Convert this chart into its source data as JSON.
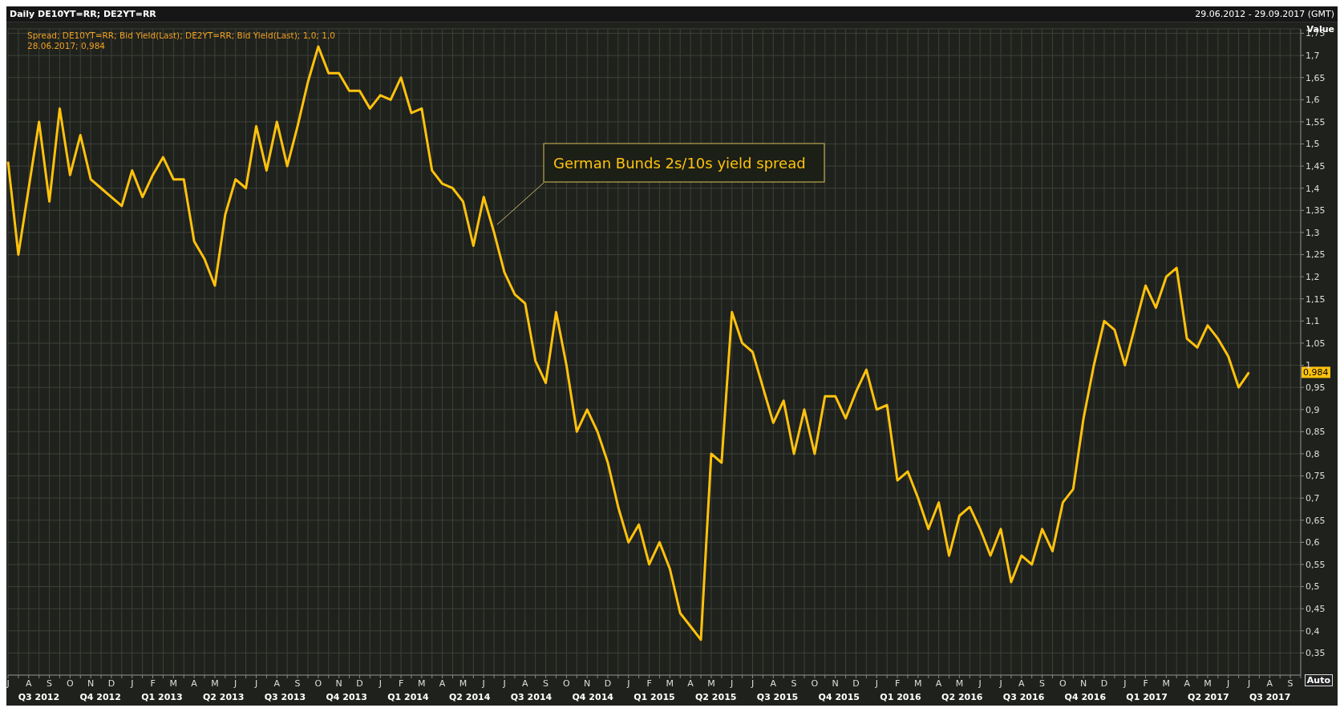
{
  "chart_data": {
    "type": "line",
    "title": "Daily DE10YT=RR; DE2YT=RR",
    "subtitle": "29.06.2012 - 29.09.2017 (GMT)",
    "ylabel": "Value",
    "categories": [
      "J",
      null,
      "A",
      null,
      "S",
      null,
      "O",
      null,
      "N",
      null,
      "D",
      null,
      "J",
      null,
      "F",
      null,
      "M",
      null,
      "A",
      null,
      "M",
      null,
      "J",
      null,
      "J",
      null,
      "A",
      null,
      "S",
      null,
      "O",
      null,
      "N",
      null,
      "D",
      null,
      "J",
      null,
      "F",
      null,
      "M",
      null,
      "A",
      null,
      "M",
      null,
      "J",
      null,
      "J",
      null,
      "A",
      null,
      "S",
      null,
      "O",
      null,
      "N",
      null,
      "D",
      null,
      "J",
      null,
      "F",
      null,
      "M",
      null,
      "A",
      null,
      "M",
      null,
      "J",
      null,
      "J",
      null,
      "A",
      null,
      "S",
      null,
      "O",
      null,
      "N",
      null,
      "D",
      null,
      "J",
      null,
      "F",
      null,
      "M",
      null,
      "A",
      null,
      "M",
      null,
      "J",
      null,
      "J",
      null,
      "A",
      null,
      "S",
      null,
      "O",
      null,
      "N",
      null,
      "D",
      null,
      "J",
      null,
      "F",
      null,
      "M",
      null,
      "A",
      null,
      "M",
      null,
      "J",
      null,
      "J",
      null,
      "A",
      null,
      "S",
      null
    ],
    "series": [
      {
        "name": "Spread; DE10YT=RR; Bid Yield(Last); DE2YT=RR; Bid Yield(Last);  1,0; 1,0",
        "color": "#ffc20e",
        "values": [
          1.46,
          1.25,
          1.4,
          1.55,
          1.37,
          1.58,
          1.43,
          1.52,
          1.42,
          1.4,
          1.38,
          1.36,
          1.44,
          1.38,
          1.43,
          1.47,
          1.42,
          1.42,
          1.28,
          1.24,
          1.18,
          1.34,
          1.42,
          1.4,
          1.54,
          1.44,
          1.55,
          1.45,
          1.54,
          1.64,
          1.72,
          1.66,
          1.66,
          1.62,
          1.62,
          1.58,
          1.61,
          1.6,
          1.65,
          1.57,
          1.58,
          1.44,
          1.41,
          1.4,
          1.37,
          1.27,
          1.38,
          1.3,
          1.21,
          1.16,
          1.14,
          1.01,
          0.96,
          1.12,
          1.0,
          0.85,
          0.9,
          0.85,
          0.78,
          0.68,
          0.6,
          0.64,
          0.55,
          0.6,
          0.54,
          0.44,
          0.41,
          0.38,
          0.8,
          0.78,
          1.12,
          1.05,
          1.03,
          0.95,
          0.87,
          0.92,
          0.8,
          0.9,
          0.8,
          0.93,
          0.93,
          0.88,
          0.94,
          0.99,
          0.9,
          0.91,
          0.74,
          0.76,
          0.7,
          0.63,
          0.69,
          0.57,
          0.66,
          0.68,
          0.63,
          0.57,
          0.63,
          0.51,
          0.57,
          0.55,
          0.63,
          0.58,
          0.69,
          0.72,
          0.88,
          1.0,
          1.1,
          1.08,
          1.0,
          1.09,
          1.18,
          1.13,
          1.2,
          1.22,
          1.06,
          1.04,
          1.09,
          1.06,
          1.02,
          0.95,
          0.984,
          null,
          null,
          null,
          null,
          null
        ]
      }
    ],
    "annotations": [
      "28.06.2017; 0,984",
      "Auto",
      "German Bunds 2s/10s yield spread",
      {
        "text": "0,984",
        "y": 0.984
      },
      "Q3 2012",
      "Q4 2012",
      "Q1 2013",
      "Q2 2013",
      "Q3 2013",
      "Q4 2013",
      "Q1 2014",
      "Q2 2014",
      "Q3 2014",
      "Q4 2014",
      "Q1 2015",
      "Q2 2015",
      "Q3 2015",
      "Q4 2015",
      "Q1 2016",
      "Q2 2016",
      "Q3 2016",
      "Q4 2016",
      "Q1 2017",
      "Q2 2017",
      "Q3 2017"
    ],
    "ylim": [
      0.3,
      1.76
    ],
    "yticks": [
      {
        "value": 0.35,
        "label": "0,35"
      },
      {
        "value": 0.4,
        "label": "0,4"
      },
      {
        "value": 0.45,
        "label": "0,45"
      },
      {
        "value": 0.5,
        "label": "0,5"
      },
      {
        "value": 0.55,
        "label": "0,55"
      },
      {
        "value": 0.6,
        "label": "0,6"
      },
      {
        "value": 0.65,
        "label": "0,65"
      },
      {
        "value": 0.7,
        "label": "0,7"
      },
      {
        "value": 0.75,
        "label": "0,75"
      },
      {
        "value": 0.8,
        "label": "0,8"
      },
      {
        "value": 0.85,
        "label": "0,85"
      },
      {
        "value": 0.9,
        "label": "0,9"
      },
      {
        "value": 0.95,
        "label": "0,95"
      },
      {
        "value": 1,
        "label": "1"
      },
      {
        "value": 1.05,
        "label": "1,05"
      },
      {
        "value": 1.1,
        "label": "1,1"
      },
      {
        "value": 1.15,
        "label": "1,15"
      },
      {
        "value": 1.2,
        "label": "1,2"
      },
      {
        "value": 1.25,
        "label": "1,25"
      },
      {
        "value": 1.3,
        "label": "1,3"
      },
      {
        "value": 1.35,
        "label": "1,35"
      },
      {
        "value": 1.4,
        "label": "1,4"
      },
      {
        "value": 1.45,
        "label": "1,45"
      },
      {
        "value": 1.5,
        "label": "1,5"
      },
      {
        "value": 1.55,
        "label": "1,55"
      },
      {
        "value": 1.6,
        "label": "1,6"
      },
      {
        "value": 1.65,
        "label": "1,65"
      },
      {
        "value": 1.7,
        "label": "1,7"
      },
      {
        "value": 1.75,
        "label": "1,75"
      }
    ],
    "grid": true,
    "marker": "none",
    "line_style": "solid"
  }
}
